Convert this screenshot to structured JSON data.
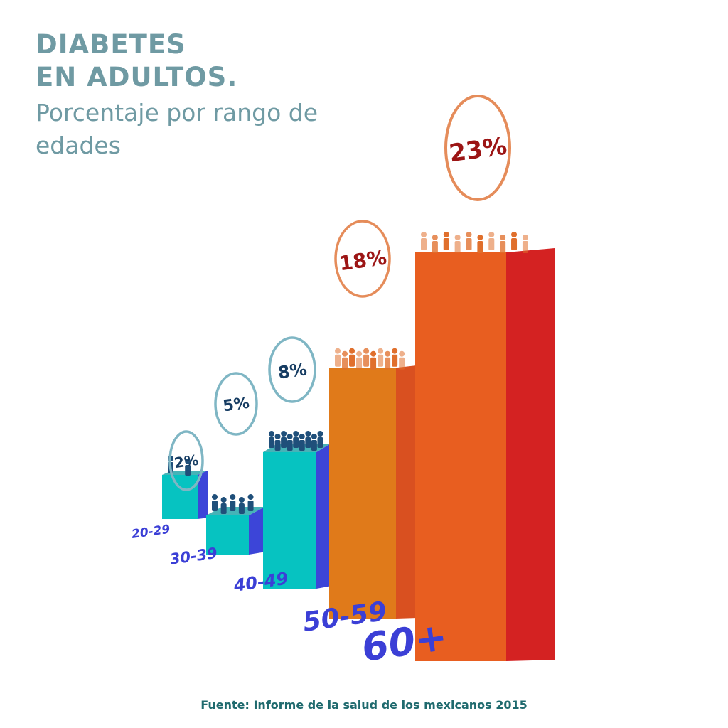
{
  "title_line1": "DIABETES",
  "title_line2": "EN ADULTOS.",
  "subtitle": "Porcentaje por rango de edades",
  "source": "Fuente: Informe de la salud de los mexicanos 2015",
  "colors": {
    "title": "#6f9aa3",
    "source": "#1f6a6e",
    "age_label": "#3b3fd6",
    "teal_front": "#06c3c1",
    "teal_side": "#3c45d8",
    "teal_top": "#46b3b7",
    "orange_front": "#e07a1a",
    "orange_side": "#d95020",
    "red_front": "#e85e20",
    "red_side": "#d42222",
    "bubble_blue": "#7fb6c4",
    "bubble_orange": "#e58c5a",
    "pct_blue": "#163c62",
    "pct_red": "#9c1515",
    "people_blue": "#1f4f7a",
    "people_orange": "#e06f2c"
  },
  "chart_data": {
    "type": "bar",
    "title": "DIABETES EN ADULTOS.",
    "subtitle": "Porcentaje por rango de edades",
    "categories": [
      "20-29",
      "30-39",
      "40-49",
      "50-59",
      "60+"
    ],
    "values": [
      2,
      5,
      8,
      18,
      23
    ],
    "value_labels": [
      "2%",
      "5%",
      "8%",
      "18%",
      "23%"
    ],
    "xlabel": "",
    "ylabel": "",
    "grid": false,
    "legend": "none"
  }
}
